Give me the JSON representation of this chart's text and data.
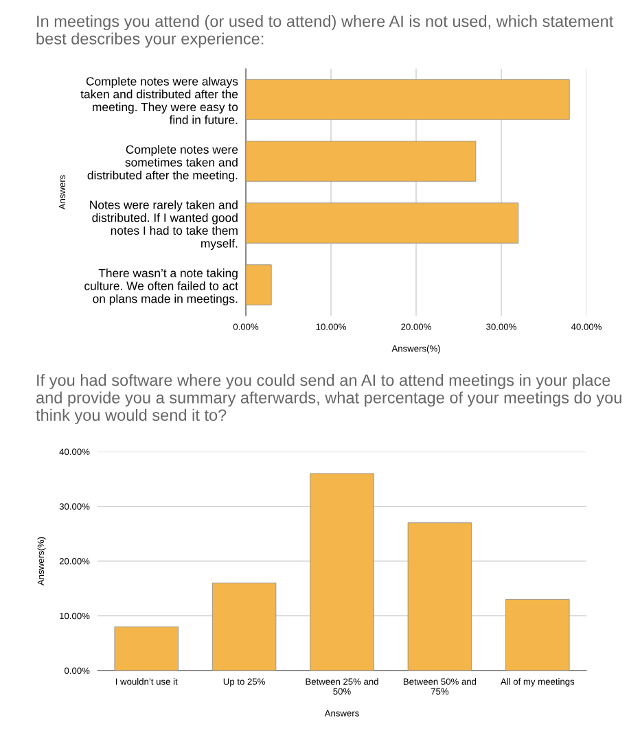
{
  "chart_data": [
    {
      "type": "bar",
      "orientation": "horizontal",
      "title": "In meetings you attend (or used to attend) where AI is not used, which statement best describes your experience:",
      "xlabel": "Answers(%)",
      "ylabel": "Answers",
      "categories": [
        "Complete notes were always\ntaken and distributed after the\nmeeting. They were easy to\nfind in future.",
        "Complete notes were\nsometimes taken and\ndistributed after the meeting.",
        "Notes were rarely taken and\ndistributed. If I wanted good\nnotes I had to take them\nmyself.",
        "There wasn’t a note taking\nculture. We often failed to act\non plans made in meetings."
      ],
      "values": [
        38,
        27,
        32,
        3
      ],
      "color": "#f4b64a",
      "xlim": [
        0,
        40
      ],
      "xticks": [
        {
          "value": 0,
          "label": "0.00%"
        },
        {
          "value": 10,
          "label": "10.00%"
        },
        {
          "value": 20,
          "label": "20.00%"
        },
        {
          "value": 30,
          "label": "30.00%"
        },
        {
          "value": 40,
          "label": "40.00%"
        }
      ],
      "grid": "x"
    },
    {
      "type": "bar",
      "title": "If you had software where you could send an AI to attend meetings in your place and provide you a summary afterwards, what percentage of your meetings do you think you would send it to?",
      "xlabel": "Answers",
      "ylabel": "Answers(%)",
      "categories": [
        "I wouldn’t use it",
        "Up to 25%",
        "Between 25% and\n50%",
        "Between 50% and\n75%",
        "All of my meetings"
      ],
      "values": [
        8,
        16,
        36,
        27,
        13
      ],
      "color": "#f4b64a",
      "ylim": [
        0,
        40
      ],
      "yticks": [
        {
          "value": 0,
          "label": "0.00%"
        },
        {
          "value": 10,
          "label": "10.00%"
        },
        {
          "value": 20,
          "label": "20.00%"
        },
        {
          "value": 30,
          "label": "30.00%"
        },
        {
          "value": 40,
          "label": "40.00%"
        }
      ],
      "grid": "y"
    }
  ]
}
